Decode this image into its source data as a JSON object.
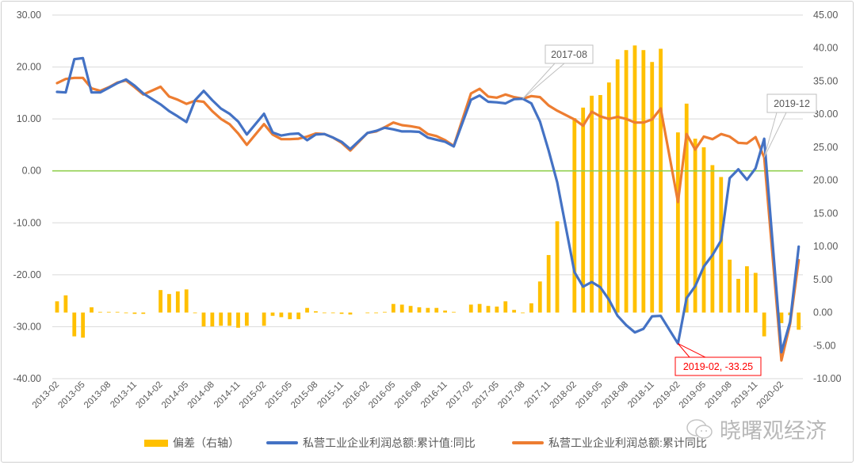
{
  "chart_data": {
    "type": "bar+line",
    "title": "",
    "x": [
      "2013-02",
      "2013-03",
      "2013-04",
      "2013-05",
      "2013-06",
      "2013-07",
      "2013-08",
      "2013-09",
      "2013-10",
      "2013-11",
      "2013-12",
      "2014-01",
      "2014-02",
      "2014-03",
      "2014-04",
      "2014-05",
      "2014-06",
      "2014-07",
      "2014-08",
      "2014-09",
      "2014-10",
      "2014-11",
      "2014-12",
      "2015-01",
      "2015-02",
      "2015-03",
      "2015-04",
      "2015-05",
      "2015-06",
      "2015-07",
      "2015-08",
      "2015-09",
      "2015-10",
      "2015-11",
      "2015-12",
      "2016-01",
      "2016-02",
      "2016-03",
      "2016-04",
      "2016-05",
      "2016-06",
      "2016-07",
      "2016-08",
      "2016-09",
      "2016-10",
      "2016-11",
      "2016-12",
      "2017-01",
      "2017-02",
      "2017-03",
      "2017-04",
      "2017-05",
      "2017-06",
      "2017-07",
      "2017-08",
      "2017-09",
      "2017-10",
      "2017-11",
      "2017-12",
      "2018-01",
      "2018-02",
      "2018-03",
      "2018-04",
      "2018-05",
      "2018-06",
      "2018-07",
      "2018-08",
      "2018-09",
      "2018-10",
      "2018-11",
      "2018-12",
      "2019-01",
      "2019-02",
      "2019-03",
      "2019-04",
      "2019-05",
      "2019-06",
      "2019-07",
      "2019-08",
      "2019-09",
      "2019-10",
      "2019-11",
      "2019-12",
      "2020-01",
      "2020-02",
      "2020-03",
      "2020-04"
    ],
    "x_tick_every": 3,
    "left_axis": {
      "ylim": [
        -40,
        30
      ],
      "ticks": [
        "30.00",
        "20.00",
        "10.00",
        "0.00",
        "-10.00",
        "-20.00",
        "-30.00",
        "-40.00"
      ],
      "tick_values": [
        30,
        20,
        10,
        0,
        -10,
        -20,
        -30,
        -40
      ]
    },
    "right_axis": {
      "ylim": [
        -10,
        45
      ],
      "ticks": [
        "45.00",
        "40.00",
        "35.00",
        "30.00",
        "25.00",
        "20.00",
        "15.00",
        "10.00",
        "5.00",
        "0.00",
        "-5.00",
        "-10.00"
      ],
      "tick_values": [
        45,
        40,
        35,
        30,
        25,
        20,
        15,
        10,
        5,
        0,
        -5,
        -10
      ]
    },
    "grid": true,
    "zero_line_color": "#92D050",
    "legend_position": "bottom",
    "series": [
      {
        "name": "偏差（右轴）",
        "type": "bar",
        "axis": "right",
        "color": "#FFC000",
        "values": [
          1.7,
          2.6,
          -3.6,
          -3.8,
          0.8,
          0.1,
          0.1,
          0.1,
          -0.1,
          -0.2,
          -0.2,
          null,
          3.4,
          2.8,
          3.2,
          3.5,
          -0.1,
          -2.1,
          -2.1,
          -2.0,
          -2.0,
          -2.3,
          -2.0,
          null,
          -2.0,
          -0.5,
          -0.7,
          -1.0,
          -1.0,
          0.7,
          0.2,
          0.0,
          0.0,
          -0.2,
          -0.3,
          null,
          0.0,
          -0.1,
          0.1,
          1.3,
          1.2,
          1.0,
          0.8,
          0.7,
          0.7,
          0.3,
          0.1,
          null,
          1.2,
          1.3,
          1.0,
          0.9,
          1.7,
          0.4,
          0.0,
          1.4,
          4.7,
          8.7,
          13.8,
          null,
          29.4,
          31.0,
          32.8,
          32.9,
          34.8,
          38.3,
          39.7,
          40.4,
          39.7,
          37.9,
          39.9,
          null,
          27.25,
          31.6,
          26.3,
          25.0,
          22.3,
          20.5,
          8.0,
          5.1,
          7.0,
          6.0,
          -3.6,
          null,
          -1.6,
          -0.4,
          -2.6
        ]
      },
      {
        "name": "私营工业企业利润总额:累计值:同比",
        "type": "line",
        "axis": "left",
        "color": "#4472C4",
        "values": [
          15.2,
          15.1,
          21.5,
          21.7,
          15.1,
          15.1,
          16.0,
          16.9,
          17.6,
          16.4,
          14.9,
          null,
          12.8,
          11.5,
          10.5,
          9.4,
          13.6,
          15.4,
          13.6,
          12.0,
          11.0,
          9.5,
          7.0,
          null,
          11.0,
          7.4,
          6.8,
          7.1,
          7.2,
          5.9,
          7.0,
          7.1,
          6.4,
          5.6,
          4.2,
          null,
          7.3,
          7.7,
          8.3,
          8.0,
          7.6,
          7.6,
          7.5,
          6.4,
          6.0,
          5.6,
          4.7,
          null,
          13.7,
          14.5,
          13.3,
          13.2,
          13.0,
          13.8,
          13.9,
          13.0,
          9.5,
          3.9,
          -2.2,
          null,
          -19.5,
          -22.3,
          -21.4,
          -22.4,
          -24.8,
          -27.9,
          -29.7,
          -31.1,
          -30.4,
          -28.0,
          -27.9,
          null,
          -33.25,
          -24.5,
          -22.2,
          -18.4,
          -16.2,
          -13.4,
          -1.4,
          0.3,
          -1.7,
          0.5,
          6.2,
          null,
          -34.9,
          -29.1,
          -14.6
        ]
      },
      {
        "name": "私营工业企业利润总额:累计同比",
        "type": "line",
        "axis": "left",
        "color": "#ED7D31",
        "values": [
          16.9,
          17.7,
          17.9,
          17.9,
          15.9,
          15.4,
          16.1,
          17.0,
          17.4,
          16.1,
          14.7,
          null,
          16.2,
          14.3,
          13.7,
          12.9,
          13.5,
          13.3,
          11.5,
          10.0,
          9.0,
          7.2,
          5.0,
          null,
          9.0,
          7.0,
          6.1,
          6.1,
          6.2,
          6.6,
          7.2,
          7.1,
          6.4,
          5.4,
          3.9,
          null,
          7.3,
          7.6,
          8.4,
          9.3,
          8.8,
          8.6,
          8.3,
          7.1,
          6.7,
          5.9,
          4.8,
          null,
          14.9,
          15.8,
          14.3,
          14.1,
          14.7,
          14.2,
          13.9,
          14.4,
          14.2,
          12.6,
          11.6,
          null,
          9.9,
          8.7,
          11.4,
          10.5,
          10.0,
          10.4,
          10.0,
          9.3,
          9.3,
          9.9,
          12.0,
          null,
          -6.0,
          7.1,
          4.1,
          6.6,
          6.1,
          7.1,
          6.6,
          5.4,
          5.3,
          6.5,
          2.6,
          null,
          -36.5,
          -29.5,
          -17.2
        ]
      }
    ],
    "annotations": [
      {
        "text": "2017-08",
        "category": "2017-08",
        "series": 2,
        "border_color": "#bfbfbf"
      },
      {
        "text": "2019-12",
        "category": "2019-12",
        "series": 2,
        "border_color": "#bfbfbf"
      },
      {
        "text": "2019-02, -33.25",
        "category": "2019-02",
        "series": 1,
        "border_color": "#FF0000",
        "text_color": "#FF0000"
      }
    ]
  },
  "legend": {
    "bar_label": "偏差（右轴）",
    "blue_label": "私营工业企业利润总额:累计值:同比",
    "orange_label": "私营工业企业利润总额:累计同比"
  },
  "watermark": {
    "text": "晓曙观经济",
    "icon": "wechat-icon"
  }
}
